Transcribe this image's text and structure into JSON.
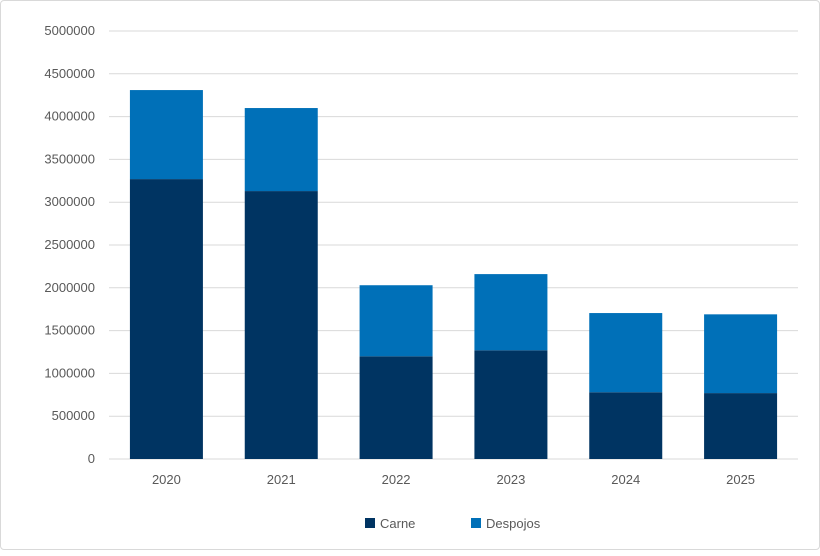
{
  "chart_data": {
    "type": "bar",
    "stacked": true,
    "categories": [
      "2020",
      "2021",
      "2022",
      "2023",
      "2024",
      "2025"
    ],
    "series": [
      {
        "name": "Carne",
        "color": "#003462",
        "values": [
          3270000,
          3130000,
          1200000,
          1270000,
          780000,
          770000
        ]
      },
      {
        "name": "Despojos",
        "color": "#0070b8",
        "values": [
          1040000,
          970000,
          830000,
          890000,
          925000,
          920000
        ]
      }
    ],
    "ylim": [
      0,
      5000000
    ],
    "yticks": [
      0,
      500000,
      1000000,
      1500000,
      2000000,
      2500000,
      3000000,
      3500000,
      4000000,
      4500000,
      5000000
    ],
    "grid": true,
    "legend_position": "bottom",
    "xlabel": "",
    "ylabel": ""
  }
}
